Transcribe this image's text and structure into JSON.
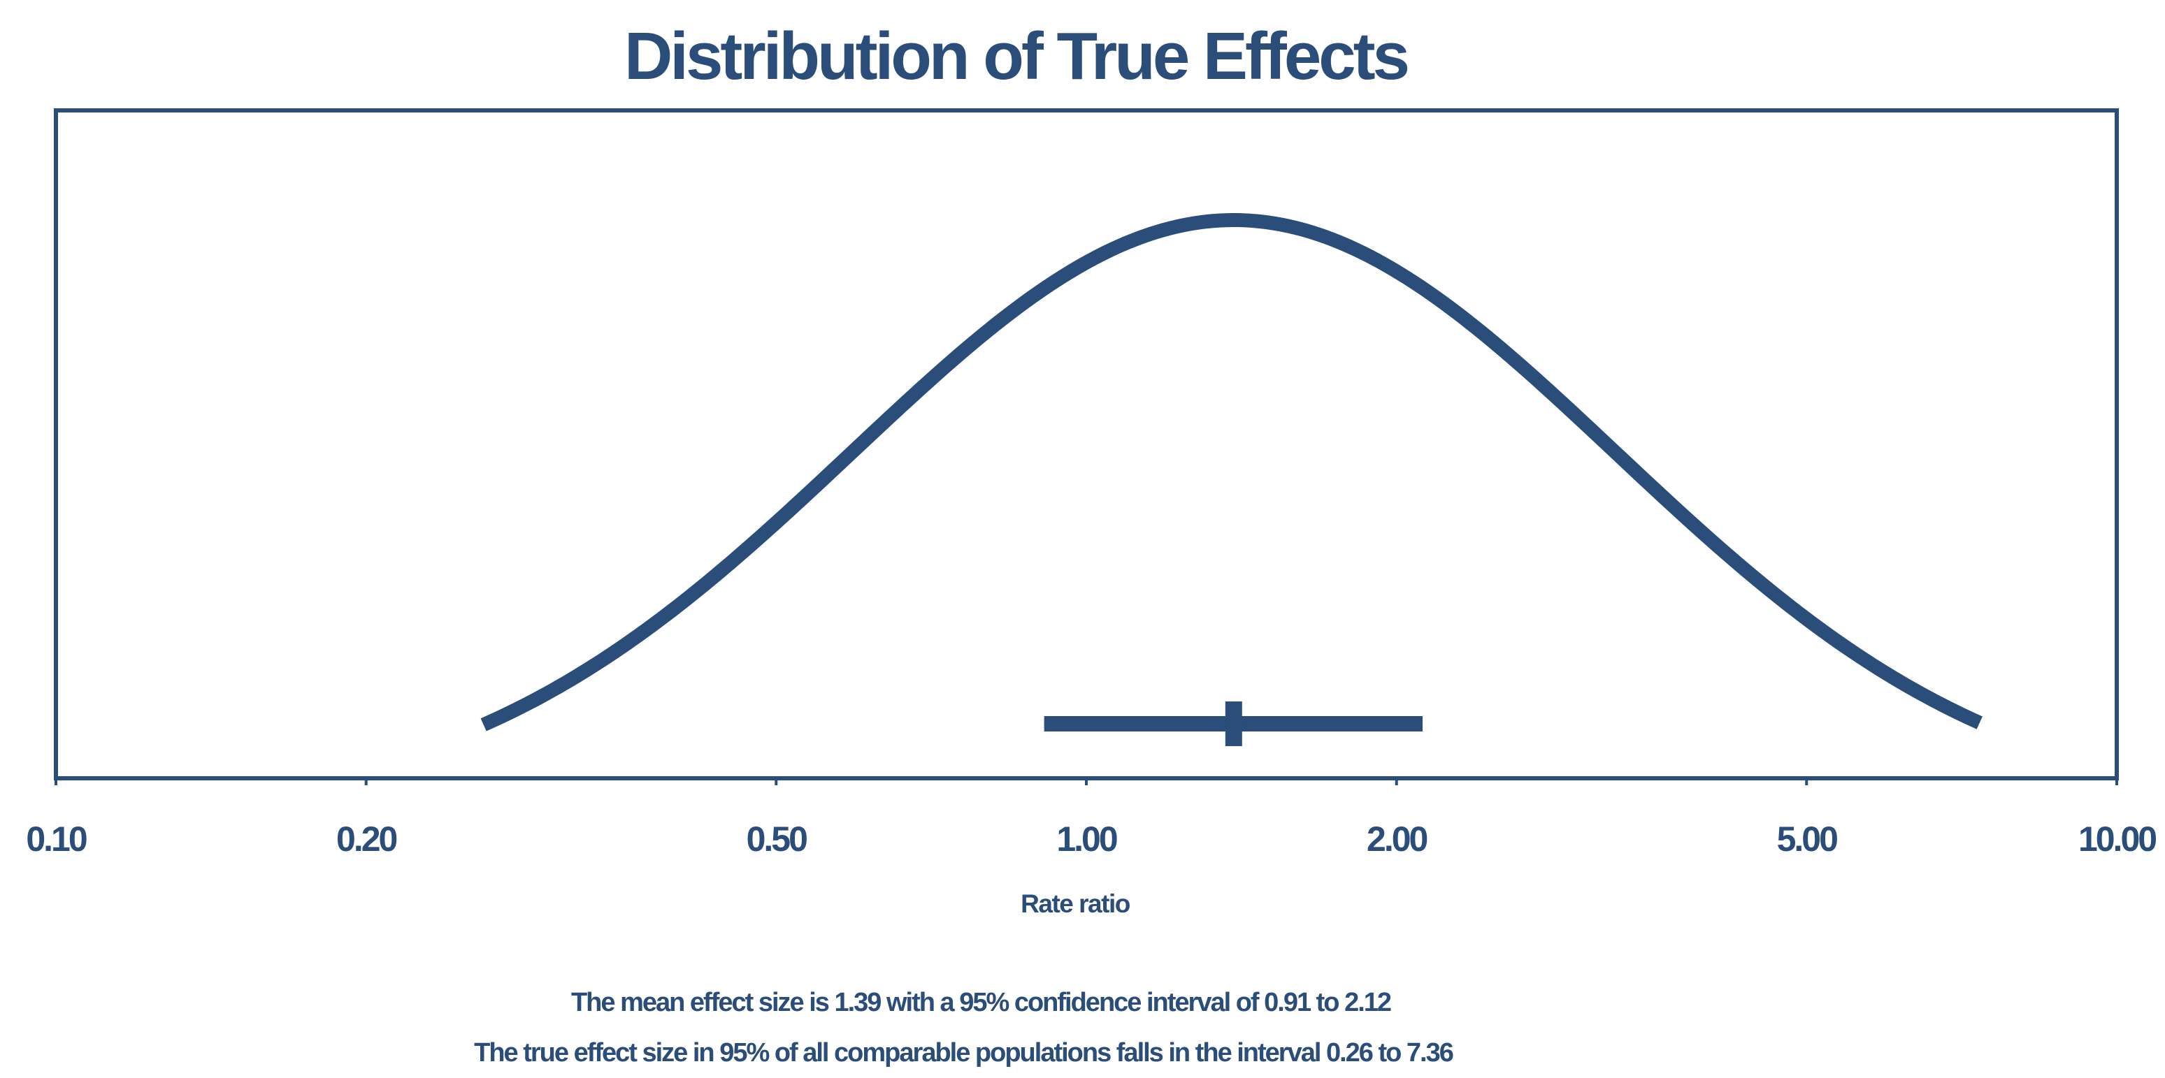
{
  "chart_data": {
    "type": "line",
    "title": "Distribution of True Effects",
    "xlabel": "Rate ratio",
    "ylabel": "",
    "x_scale": "log",
    "xlim": [
      0.1,
      10
    ],
    "x_ticks": [
      0.1,
      0.2,
      0.5,
      1,
      2,
      5,
      10
    ],
    "x_tick_labels": [
      "0.10",
      "0.20",
      "0.50",
      "1.00",
      "2.00",
      "5.00",
      "10.00"
    ],
    "grid": false,
    "legend": "none",
    "series": [
      {
        "name": "Distribution of true effects",
        "kind": "lognormal-density",
        "mean": 1.39,
        "prediction_interval": [
          0.26,
          7.36
        ],
        "x_range": [
          0.26,
          7.36
        ]
      },
      {
        "name": "Mean effect size with 95% confidence interval",
        "kind": "interval",
        "point": 1.39,
        "ci_low": 0.91,
        "ci_high": 2.12
      }
    ],
    "notes": [
      "The mean effect size is 1.39 with a 95% confidence interval of 0.91 to 2.12",
      "The true effect size in 95% of all comparable populations falls in the interval 0.26 to 7.36"
    ]
  },
  "colors": {
    "primary": "#2a4d7a",
    "background": "#ffffff"
  }
}
